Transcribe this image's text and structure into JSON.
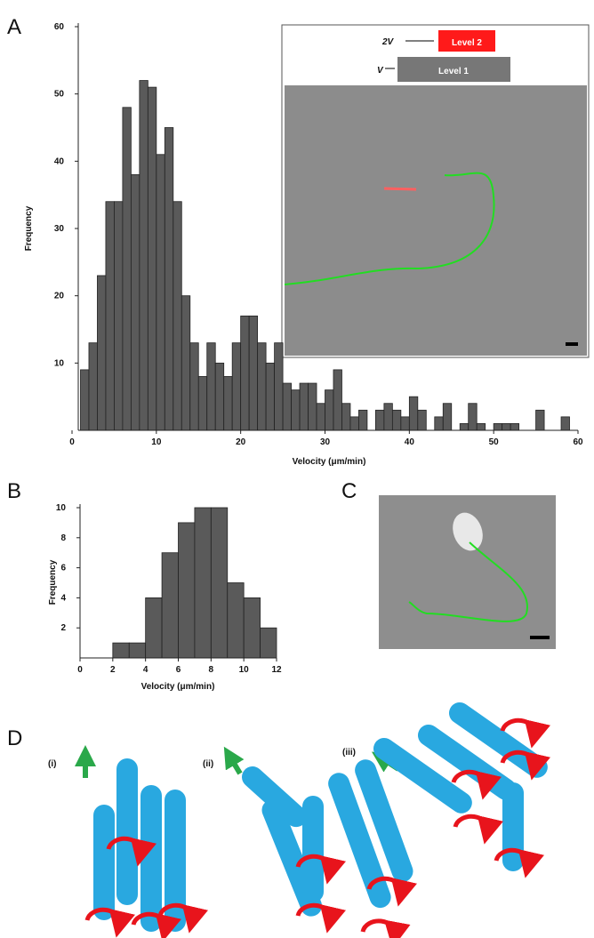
{
  "panel_labels": [
    "A",
    "B",
    "C",
    "D"
  ],
  "inset_labels": [
    "2V",
    "Level 2",
    "V",
    "Level 1"
  ],
  "diagram_labels": [
    "(i)",
    "(ii)",
    "(iii)"
  ],
  "chart_data": [
    {
      "type": "histogram",
      "color": "#5a5a5a",
      "ylabel": "Frequency",
      "xlabel": "Velocity (μm/min)",
      "bins": [
        1,
        2,
        3,
        4,
        5,
        6,
        7,
        8,
        9,
        10,
        11,
        12,
        13,
        14,
        15,
        16,
        17,
        18,
        19,
        20,
        21,
        22,
        23,
        24,
        25,
        26,
        27,
        28,
        29,
        30,
        31,
        32,
        33,
        34,
        35,
        36,
        37,
        38,
        39,
        40,
        41,
        42,
        43,
        44,
        45,
        46,
        47,
        48,
        49,
        50,
        51,
        52,
        53,
        54,
        55,
        56,
        57,
        58,
        59
      ],
      "values": [
        9,
        13,
        23,
        34,
        34,
        48,
        38,
        52,
        51,
        41,
        45,
        34,
        20,
        13,
        8,
        13,
        10,
        8,
        13,
        17,
        17,
        13,
        10,
        13,
        7,
        6,
        7,
        7,
        4,
        6,
        9,
        4,
        2,
        3,
        0,
        3,
        4,
        3,
        2,
        5,
        3,
        0,
        2,
        4,
        0,
        1,
        4,
        1,
        0,
        1,
        1,
        1,
        0,
        0,
        3,
        0,
        0,
        2
      ],
      "xlim": [
        0,
        60
      ],
      "ylim": [
        0,
        60
      ],
      "xticks": [
        0,
        10,
        20,
        30,
        40,
        50,
        60
      ],
      "yticks": [
        10,
        20,
        30,
        40,
        50,
        60
      ]
    },
    {
      "type": "histogram",
      "color": "#5a5a5a",
      "ylabel": "Frequency",
      "xlabel": "Velocity (μm/min)",
      "bins": [
        2,
        3,
        4,
        5,
        6,
        7,
        8,
        9,
        10,
        11,
        12
      ],
      "values": [
        1,
        1,
        4,
        7,
        9,
        10,
        10,
        5,
        4,
        2
      ],
      "xlim": [
        0,
        12
      ],
      "ylim": [
        0,
        10
      ],
      "xticks": [
        0,
        2,
        4,
        6,
        8,
        10,
        12
      ],
      "yticks": [
        2,
        4,
        6,
        8,
        10
      ]
    }
  ]
}
